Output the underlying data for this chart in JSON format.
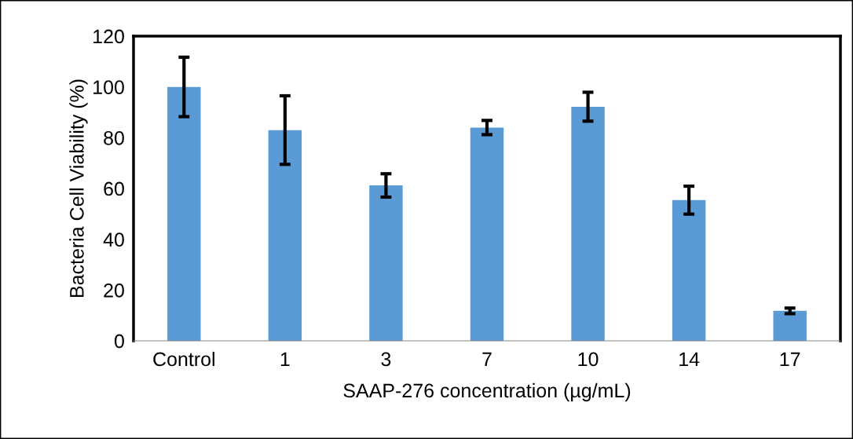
{
  "chart_data": {
    "type": "bar",
    "xlabel": "SAAP-276 concentration (µg/mL)",
    "ylabel": "Bacteria Cell Viability (%)",
    "categories": [
      "Control",
      "1",
      "3",
      "7",
      "10",
      "14",
      "17"
    ],
    "series": [
      {
        "color": "#5b9bd5",
        "values": [
          100,
          83,
          61.2,
          84,
          92.2,
          55.4,
          11.8
        ],
        "errors": [
          11.7,
          13.5,
          4.6,
          2.8,
          5.7,
          5.5,
          1.1
        ]
      }
    ],
    "ylim": [
      0,
      120
    ],
    "yticks": [
      0,
      20,
      40,
      60,
      80,
      100,
      120
    ],
    "grid": false,
    "legend": false
  }
}
